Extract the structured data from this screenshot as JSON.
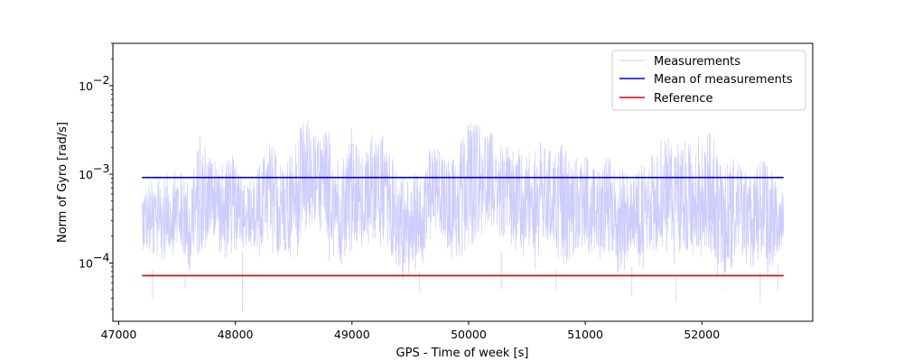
{
  "chart_data": {
    "type": "line",
    "title": "",
    "xlabel": "GPS - Time of week [s]",
    "ylabel": "Norm of Gyro [rad/s]",
    "xlim": [
      46950,
      52950
    ],
    "ylim": [
      2.2e-05,
      0.03
    ],
    "yscale": "log",
    "grid": false,
    "legend_position": "top-right",
    "x_ticks": [
      {
        "value": 47000,
        "label": "47000"
      },
      {
        "value": 48000,
        "label": "48000"
      },
      {
        "value": 49000,
        "label": "49000"
      },
      {
        "value": 50000,
        "label": "50000"
      },
      {
        "value": 51000,
        "label": "51000"
      },
      {
        "value": 52000,
        "label": "52000"
      }
    ],
    "y_ticks": [
      {
        "value": 0.0001,
        "base": "10",
        "exp": "−4"
      },
      {
        "value": 0.001,
        "base": "10",
        "exp": "−3"
      },
      {
        "value": 0.01,
        "base": "10",
        "exp": "−2"
      }
    ],
    "series": [
      {
        "name": "Measurements",
        "color": "#ccccff",
        "style": "thin-line",
        "x": [
          47200,
          47300,
          47400,
          47500,
          47600,
          47700,
          47800,
          47900,
          48000,
          48100,
          48200,
          48300,
          48400,
          48500,
          48600,
          48700,
          48800,
          48900,
          49000,
          49100,
          49200,
          49300,
          49400,
          49500,
          49600,
          49700,
          49800,
          49900,
          50000,
          50100,
          50200,
          50300,
          50400,
          50500,
          50600,
          50700,
          50800,
          50900,
          51000,
          51100,
          51200,
          51300,
          51400,
          51500,
          51600,
          51700,
          51800,
          51900,
          52000,
          52100,
          52200,
          52300,
          52400,
          52500,
          52600,
          52700
        ],
        "upper": [
          0.00075,
          0.0009,
          0.001,
          0.0012,
          0.0009,
          0.003,
          0.002,
          0.0013,
          0.0018,
          0.0008,
          0.0013,
          0.0025,
          0.0014,
          0.0022,
          0.0048,
          0.0028,
          0.0035,
          0.0015,
          0.0035,
          0.0015,
          0.0045,
          0.002,
          0.0013,
          0.0009,
          0.0014,
          0.0025,
          0.0015,
          0.0017,
          0.0052,
          0.004,
          0.003,
          0.002,
          0.0022,
          0.0016,
          0.0025,
          0.0019,
          0.0025,
          0.0016,
          0.0017,
          0.0011,
          0.0019,
          0.0013,
          0.0011,
          0.0014,
          0.0018,
          0.0034,
          0.0028,
          0.0023,
          0.0035,
          0.0028,
          0.0014,
          0.0018,
          0.0009,
          0.0016,
          0.0012,
          0.0011
        ],
        "lower": [
          0.00012,
          8e-05,
          0.0001,
          0.00012,
          6e-05,
          9e-05,
          0.00016,
          8e-05,
          0.00011,
          0.00015,
          8e-05,
          0.00013,
          7e-05,
          9e-05,
          0.00015,
          0.00018,
          0.0001,
          8e-05,
          0.00012,
          9e-05,
          0.00015,
          0.00011,
          6e-05,
          5e-05,
          9e-05,
          0.00015,
          0.00013,
          7e-05,
          9e-05,
          0.00018,
          0.0002,
          0.00012,
          8e-05,
          0.00011,
          7e-05,
          0.00012,
          6e-05,
          9e-05,
          0.00012,
          7e-05,
          0.0001,
          6e-05,
          9e-05,
          7e-05,
          0.00011,
          0.00013,
          6e-05,
          8e-05,
          0.00012,
          8e-05,
          5e-05,
          0.0001,
          6e-05,
          8e-05,
          6e-05,
          0.00015
        ],
        "spikes": [
          [
            47290,
            4e-05
          ],
          [
            47570,
            5.2e-05
          ],
          [
            48060,
            2.8e-05
          ],
          [
            49580,
            4.8e-05
          ],
          [
            50280,
            5e-05
          ],
          [
            50750,
            4.9e-05
          ],
          [
            51400,
            4.2e-05
          ],
          [
            51780,
            3.6e-05
          ],
          [
            52200,
            5.2e-05
          ],
          [
            52500,
            3.6e-05
          ],
          [
            52650,
            5e-05
          ]
        ]
      },
      {
        "name": "Mean of measurements",
        "color": "#0000cc",
        "x": [
          47200,
          52700
        ],
        "values": [
          0.00092,
          0.00092
        ]
      },
      {
        "name": "Reference",
        "color": "#dd0000",
        "x": [
          47200,
          52700
        ],
        "values": [
          7.2e-05,
          7.2e-05
        ]
      }
    ]
  }
}
